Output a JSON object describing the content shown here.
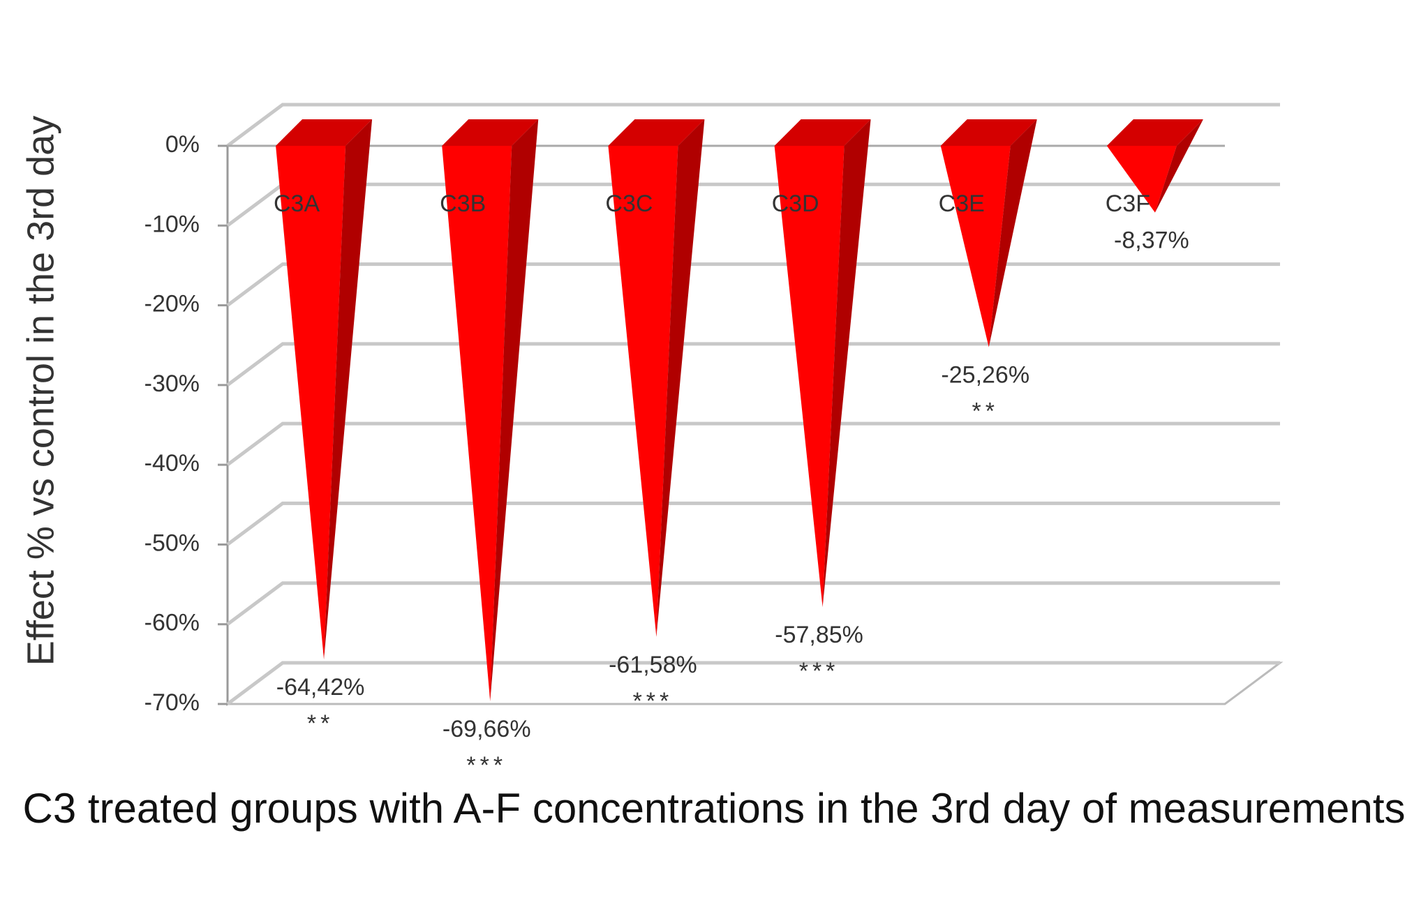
{
  "chart_data": {
    "type": "pyramid",
    "y_label": "Effect % vs control in the 3rd day",
    "x_label": "C3 treated groups with A-F concentrations in the 3rd day of measurements",
    "categories": [
      "C3A",
      "C3B",
      "C3C",
      "C3D",
      "C3E",
      "C3F"
    ],
    "values": [
      -64.42,
      -69.66,
      -61.58,
      -57.85,
      -25.26,
      -8.37
    ],
    "value_labels": [
      "-64,42%",
      "-69,66%",
      "-61,58%",
      "-57,85%",
      "-25,26%",
      "-8,37%"
    ],
    "significance": [
      "**",
      "***",
      "***",
      "***",
      "**",
      null
    ],
    "color": "#ff0000",
    "ylim": [
      -70,
      0
    ],
    "yticks": [
      {
        "value": 0,
        "label": "0%"
      },
      {
        "value": -10,
        "label": "-10%"
      },
      {
        "value": -20,
        "label": "-20%"
      },
      {
        "value": -30,
        "label": "-30%"
      },
      {
        "value": -40,
        "label": "-40%"
      },
      {
        "value": -50,
        "label": "-50%"
      },
      {
        "value": -60,
        "label": "-60%"
      },
      {
        "value": -70,
        "label": "-70%"
      }
    ],
    "grid": true
  }
}
